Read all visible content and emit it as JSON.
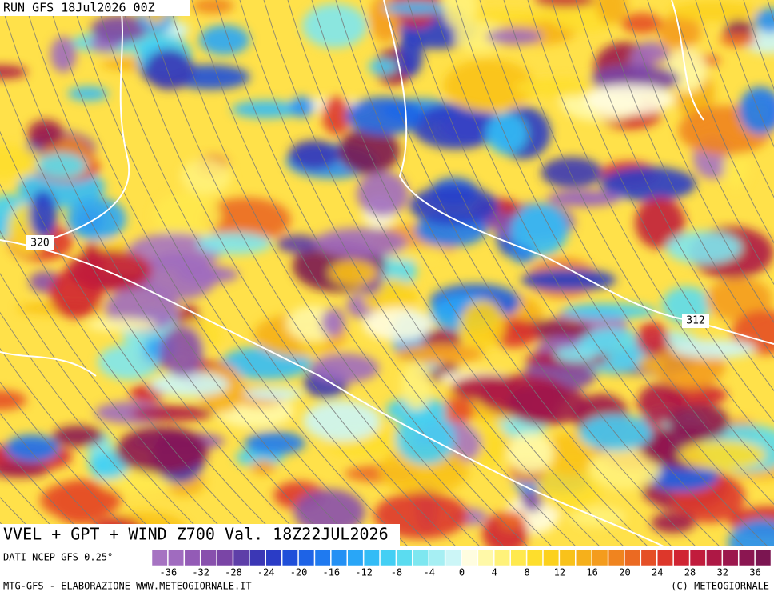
{
  "header": {
    "run": "RUN GFS 18Jul2026 00Z"
  },
  "map": {
    "contour_labels": [
      "320",
      "312"
    ]
  },
  "caption": {
    "title": "VVEL + GPT + WIND Z700 Val. 18Z22JUL2026",
    "source": "DATI NCEP GFS 0.25°"
  },
  "colorbar": {
    "ticks": [
      -36,
      -32,
      -28,
      -24,
      -20,
      -16,
      -12,
      -8,
      -4,
      0,
      4,
      8,
      12,
      16,
      20,
      24,
      28,
      32,
      36
    ],
    "colors": [
      "#a673c2",
      "#a06bbf",
      "#935bb6",
      "#8850ad",
      "#7a45a6",
      "#5e3fa8",
      "#3b37b5",
      "#2a3cc6",
      "#1f4fd9",
      "#1e63e6",
      "#1f7af0",
      "#2390f4",
      "#29a6f7",
      "#33bcf6",
      "#43cff4",
      "#5bdcf0",
      "#7ee7f0",
      "#a6eff3",
      "#ccf6f7",
      "#fffde0",
      "#fff9a8",
      "#fff27a",
      "#ffe94e",
      "#fede2c",
      "#fcd11c",
      "#f9c21a",
      "#f6b01b",
      "#f49c1d",
      "#f0841f",
      "#eb6a22",
      "#e54f26",
      "#dd372b",
      "#d02432",
      "#c11c3c",
      "#ae1845",
      "#9c174d",
      "#8b1651",
      "#7b1551"
    ]
  },
  "footer": {
    "left": "MTG-GFS - ELABORAZIONE WWW.METEOGIORNALE.IT",
    "right": "(C) METEOGIORNALE"
  }
}
